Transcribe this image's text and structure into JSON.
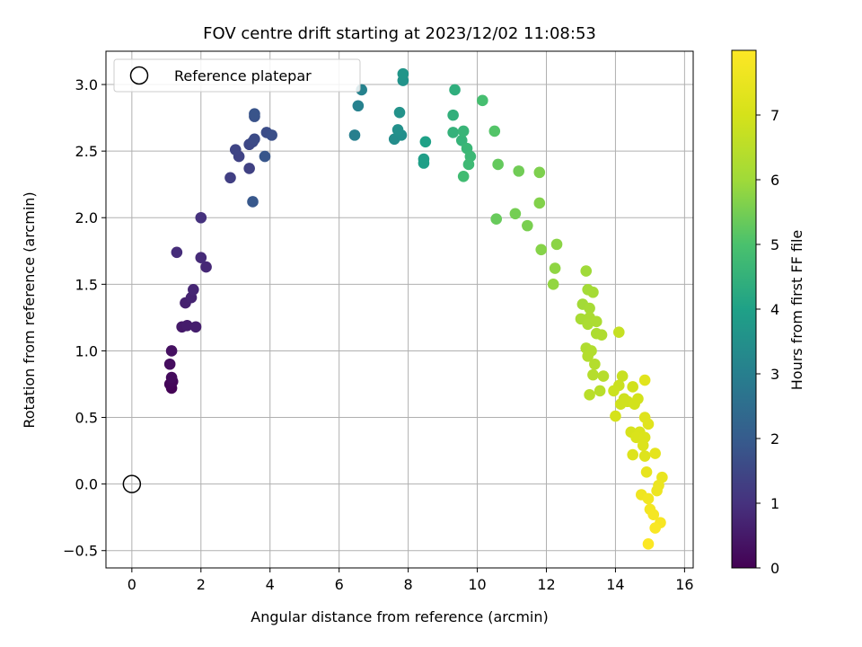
{
  "chart_data": {
    "type": "scatter",
    "title": "FOV centre drift starting at 2023/12/02 11:08:53",
    "xlabel": "Angular distance from reference (arcmin)",
    "ylabel": "Rotation from reference (arcmin)",
    "xlim": [
      -0.75,
      16.25
    ],
    "ylim": [
      -0.63,
      3.25
    ],
    "xticks": [
      0,
      2,
      4,
      6,
      8,
      10,
      12,
      14,
      16
    ],
    "yticks": [
      -0.5,
      0.0,
      0.5,
      1.0,
      1.5,
      2.0,
      2.5,
      3.0
    ],
    "ytick_labels": [
      "−0.5",
      "0.0",
      "0.5",
      "1.0",
      "1.5",
      "2.0",
      "2.5",
      "3.0"
    ],
    "grid": true,
    "legend": {
      "placement": "top-left",
      "entries": [
        {
          "label": "Reference platepar",
          "marker": "open-circle"
        }
      ]
    },
    "reference_point": {
      "x": 0,
      "y": 0
    },
    "colorbar": {
      "label": "Hours from first FF file",
      "colormap": "viridis",
      "range": [
        0,
        8
      ],
      "ticks": [
        0,
        1,
        2,
        3,
        4,
        5,
        6,
        7
      ]
    },
    "points": [
      {
        "x": 1.15,
        "y": 0.72,
        "c": 0.05
      },
      {
        "x": 1.1,
        "y": 0.75,
        "c": 0.1
      },
      {
        "x": 1.18,
        "y": 0.77,
        "c": 0.15
      },
      {
        "x": 1.15,
        "y": 0.8,
        "c": 0.2
      },
      {
        "x": 1.1,
        "y": 0.9,
        "c": 0.25
      },
      {
        "x": 1.15,
        "y": 1.0,
        "c": 0.3
      },
      {
        "x": 1.45,
        "y": 1.18,
        "c": 0.5
      },
      {
        "x": 1.6,
        "y": 1.19,
        "c": 0.55
      },
      {
        "x": 1.85,
        "y": 1.18,
        "c": 0.6
      },
      {
        "x": 1.55,
        "y": 1.36,
        "c": 0.65
      },
      {
        "x": 1.72,
        "y": 1.4,
        "c": 0.7
      },
      {
        "x": 1.78,
        "y": 1.46,
        "c": 0.75
      },
      {
        "x": 2.15,
        "y": 1.63,
        "c": 0.8
      },
      {
        "x": 2.0,
        "y": 1.7,
        "c": 0.85
      },
      {
        "x": 1.3,
        "y": 1.74,
        "c": 0.9
      },
      {
        "x": 2.0,
        "y": 2.0,
        "c": 1.0
      },
      {
        "x": 2.85,
        "y": 2.3,
        "c": 1.3
      },
      {
        "x": 3.4,
        "y": 2.37,
        "c": 1.35
      },
      {
        "x": 3.1,
        "y": 2.46,
        "c": 1.4
      },
      {
        "x": 3.0,
        "y": 2.51,
        "c": 1.45
      },
      {
        "x": 3.4,
        "y": 2.55,
        "c": 1.5
      },
      {
        "x": 3.5,
        "y": 2.57,
        "c": 1.55
      },
      {
        "x": 3.55,
        "y": 2.59,
        "c": 1.6
      },
      {
        "x": 3.9,
        "y": 2.64,
        "c": 1.65
      },
      {
        "x": 4.05,
        "y": 2.62,
        "c": 1.7
      },
      {
        "x": 3.55,
        "y": 2.76,
        "c": 1.75
      },
      {
        "x": 3.55,
        "y": 2.78,
        "c": 1.8
      },
      {
        "x": 3.85,
        "y": 2.46,
        "c": 1.85
      },
      {
        "x": 3.5,
        "y": 2.12,
        "c": 1.9
      },
      {
        "x": 6.45,
        "y": 2.62,
        "c": 3.0
      },
      {
        "x": 6.55,
        "y": 2.84,
        "c": 3.05
      },
      {
        "x": 6.65,
        "y": 2.96,
        "c": 3.1
      },
      {
        "x": 7.6,
        "y": 2.59,
        "c": 3.4
      },
      {
        "x": 7.8,
        "y": 2.62,
        "c": 3.45
      },
      {
        "x": 7.7,
        "y": 2.66,
        "c": 3.5
      },
      {
        "x": 7.75,
        "y": 2.79,
        "c": 3.55
      },
      {
        "x": 7.85,
        "y": 3.03,
        "c": 3.6
      },
      {
        "x": 7.85,
        "y": 3.08,
        "c": 3.65
      },
      {
        "x": 8.45,
        "y": 2.44,
        "c": 3.9
      },
      {
        "x": 8.45,
        "y": 2.41,
        "c": 3.95
      },
      {
        "x": 8.5,
        "y": 2.57,
        "c": 4.0
      },
      {
        "x": 9.35,
        "y": 2.96,
        "c": 4.4
      },
      {
        "x": 9.3,
        "y": 2.77,
        "c": 4.45
      },
      {
        "x": 9.3,
        "y": 2.64,
        "c": 4.5
      },
      {
        "x": 9.55,
        "y": 2.58,
        "c": 4.55
      },
      {
        "x": 9.6,
        "y": 2.65,
        "c": 4.6
      },
      {
        "x": 9.7,
        "y": 2.52,
        "c": 4.65
      },
      {
        "x": 9.8,
        "y": 2.46,
        "c": 4.7
      },
      {
        "x": 9.75,
        "y": 2.4,
        "c": 4.75
      },
      {
        "x": 9.6,
        "y": 2.31,
        "c": 4.8
      },
      {
        "x": 10.15,
        "y": 2.88,
        "c": 4.9
      },
      {
        "x": 10.5,
        "y": 2.65,
        "c": 5.1
      },
      {
        "x": 10.6,
        "y": 2.4,
        "c": 5.3
      },
      {
        "x": 10.55,
        "y": 1.99,
        "c": 5.35
      },
      {
        "x": 11.2,
        "y": 2.35,
        "c": 5.45
      },
      {
        "x": 11.1,
        "y": 2.03,
        "c": 5.5
      },
      {
        "x": 11.45,
        "y": 1.94,
        "c": 5.55
      },
      {
        "x": 11.8,
        "y": 2.34,
        "c": 5.6
      },
      {
        "x": 11.8,
        "y": 2.11,
        "c": 5.65
      },
      {
        "x": 11.85,
        "y": 1.76,
        "c": 5.7
      },
      {
        "x": 12.3,
        "y": 1.8,
        "c": 5.75
      },
      {
        "x": 12.25,
        "y": 1.62,
        "c": 5.8
      },
      {
        "x": 12.2,
        "y": 1.5,
        "c": 5.85
      },
      {
        "x": 13.15,
        "y": 1.6,
        "c": 6.0
      },
      {
        "x": 13.05,
        "y": 1.35,
        "c": 6.05
      },
      {
        "x": 13.2,
        "y": 1.46,
        "c": 6.08
      },
      {
        "x": 13.35,
        "y": 1.44,
        "c": 6.1
      },
      {
        "x": 13.25,
        "y": 1.32,
        "c": 6.12
      },
      {
        "x": 13.0,
        "y": 1.24,
        "c": 6.15
      },
      {
        "x": 13.25,
        "y": 1.25,
        "c": 6.18
      },
      {
        "x": 13.2,
        "y": 1.2,
        "c": 6.2
      },
      {
        "x": 13.45,
        "y": 1.22,
        "c": 6.22
      },
      {
        "x": 13.45,
        "y": 1.13,
        "c": 6.25
      },
      {
        "x": 13.6,
        "y": 1.12,
        "c": 6.28
      },
      {
        "x": 13.15,
        "y": 1.02,
        "c": 6.3
      },
      {
        "x": 13.3,
        "y": 1.0,
        "c": 6.32
      },
      {
        "x": 13.2,
        "y": 0.96,
        "c": 6.35
      },
      {
        "x": 13.4,
        "y": 0.9,
        "c": 6.38
      },
      {
        "x": 13.35,
        "y": 0.82,
        "c": 6.4
      },
      {
        "x": 13.65,
        "y": 0.81,
        "c": 6.42
      },
      {
        "x": 13.55,
        "y": 0.7,
        "c": 6.45
      },
      {
        "x": 13.25,
        "y": 0.67,
        "c": 6.48
      },
      {
        "x": 14.1,
        "y": 1.14,
        "c": 6.7
      },
      {
        "x": 14.2,
        "y": 0.81,
        "c": 6.75
      },
      {
        "x": 14.1,
        "y": 0.74,
        "c": 6.8
      },
      {
        "x": 13.95,
        "y": 0.7,
        "c": 6.82
      },
      {
        "x": 14.25,
        "y": 0.64,
        "c": 6.85
      },
      {
        "x": 14.15,
        "y": 0.6,
        "c": 6.88
      },
      {
        "x": 14.35,
        "y": 0.62,
        "c": 6.9
      },
      {
        "x": 14.5,
        "y": 0.73,
        "c": 6.92
      },
      {
        "x": 14.55,
        "y": 0.6,
        "c": 6.95
      },
      {
        "x": 14.65,
        "y": 0.64,
        "c": 6.97
      },
      {
        "x": 14.0,
        "y": 0.51,
        "c": 7.0
      },
      {
        "x": 14.45,
        "y": 0.39,
        "c": 7.05
      },
      {
        "x": 14.7,
        "y": 0.39,
        "c": 7.1
      },
      {
        "x": 14.6,
        "y": 0.35,
        "c": 7.12
      },
      {
        "x": 14.85,
        "y": 0.35,
        "c": 7.15
      },
      {
        "x": 14.8,
        "y": 0.29,
        "c": 7.18
      },
      {
        "x": 14.5,
        "y": 0.22,
        "c": 7.2
      },
      {
        "x": 14.85,
        "y": 0.21,
        "c": 7.22
      },
      {
        "x": 14.85,
        "y": 0.5,
        "c": 7.25
      },
      {
        "x": 14.95,
        "y": 0.45,
        "c": 7.28
      },
      {
        "x": 14.85,
        "y": 0.78,
        "c": 7.3
      },
      {
        "x": 15.15,
        "y": 0.23,
        "c": 7.4
      },
      {
        "x": 14.9,
        "y": 0.09,
        "c": 7.45
      },
      {
        "x": 15.35,
        "y": 0.05,
        "c": 7.5
      },
      {
        "x": 15.25,
        "y": -0.01,
        "c": 7.55
      },
      {
        "x": 15.2,
        "y": -0.05,
        "c": 7.6
      },
      {
        "x": 14.75,
        "y": -0.08,
        "c": 7.65
      },
      {
        "x": 14.95,
        "y": -0.11,
        "c": 7.7
      },
      {
        "x": 15.0,
        "y": -0.19,
        "c": 7.75
      },
      {
        "x": 15.1,
        "y": -0.23,
        "c": 7.8
      },
      {
        "x": 15.3,
        "y": -0.29,
        "c": 7.85
      },
      {
        "x": 15.15,
        "y": -0.33,
        "c": 7.9
      },
      {
        "x": 14.95,
        "y": -0.45,
        "c": 7.95
      }
    ]
  }
}
